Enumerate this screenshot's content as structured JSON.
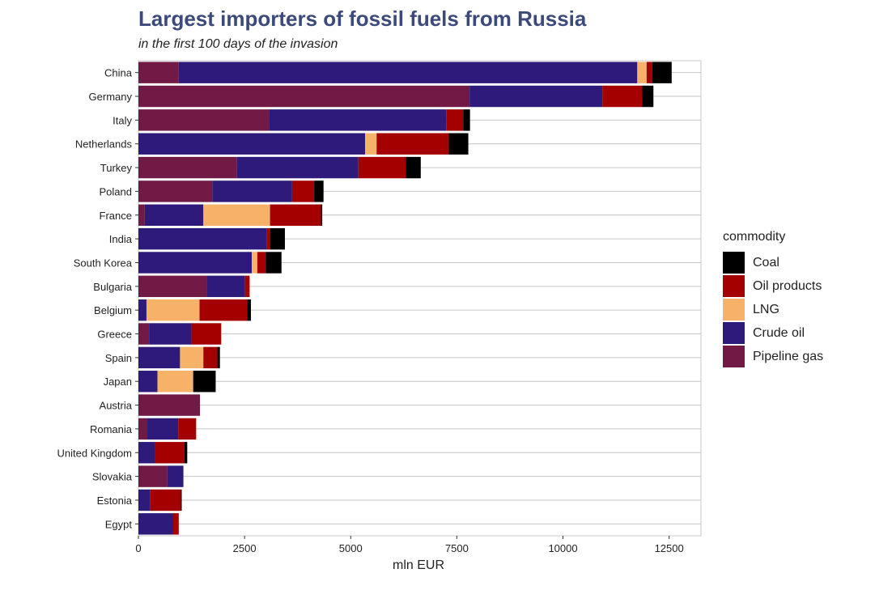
{
  "title": "Largest importers of fossil fuels from Russia",
  "subtitle": "in the first 100 days of the invasion",
  "legend": {
    "title": "commodity",
    "items": [
      {
        "label": "Coal",
        "color": "#000000"
      },
      {
        "label": "Oil products",
        "color": "#a50000"
      },
      {
        "label": "LNG",
        "color": "#f7b26a"
      },
      {
        "label": "Crude oil",
        "color": "#2e1a7a"
      },
      {
        "label": "Pipeline gas",
        "color": "#701a45"
      }
    ]
  },
  "chart_data": {
    "type": "bar",
    "orientation": "horizontal",
    "stacked": true,
    "xlabel": "mln EUR",
    "ylabel": "",
    "xlim": [
      0,
      13250
    ],
    "xticks": [
      0,
      2500,
      5000,
      7500,
      10000,
      12500
    ],
    "xtick_labels": [
      "0",
      "2500",
      "5000",
      "7500",
      "10000",
      "12500"
    ],
    "grid": "horizontal",
    "legend_position": "right",
    "categories": [
      "China",
      "Germany",
      "Italy",
      "Netherlands",
      "Turkey",
      "Poland",
      "France",
      "India",
      "South Korea",
      "Bulgaria",
      "Belgium",
      "Greece",
      "Spain",
      "Japan",
      "Austria",
      "Romania",
      "United Kingdom",
      "Slovakia",
      "Estonia",
      "Egypt"
    ],
    "series": [
      {
        "name": "Pipeline gas",
        "color": "#701a45",
        "values": [
          950,
          7800,
          3080,
          0,
          2320,
          1740,
          150,
          0,
          0,
          1620,
          0,
          250,
          0,
          0,
          1450,
          210,
          0,
          680,
          0,
          0
        ]
      },
      {
        "name": "Crude oil",
        "color": "#2e1a7a",
        "values": [
          10800,
          3130,
          4170,
          5340,
          2860,
          1880,
          1380,
          3020,
          2670,
          890,
          190,
          1000,
          980,
          450,
          0,
          730,
          390,
          380,
          280,
          820
        ]
      },
      {
        "name": "LNG",
        "color": "#f7b26a",
        "values": [
          220,
          0,
          0,
          270,
          0,
          0,
          1570,
          0,
          130,
          0,
          1250,
          0,
          550,
          840,
          0,
          0,
          0,
          0,
          0,
          0
        ]
      },
      {
        "name": "Oil products",
        "color": "#a50000",
        "values": [
          130,
          930,
          400,
          1700,
          1120,
          520,
          1200,
          80,
          200,
          110,
          1120,
          700,
          330,
          0,
          0,
          420,
          690,
          0,
          720,
          130
        ]
      },
      {
        "name": "Coal",
        "color": "#000000",
        "values": [
          460,
          270,
          160,
          460,
          350,
          220,
          30,
          350,
          370,
          0,
          90,
          0,
          60,
          530,
          0,
          0,
          70,
          0,
          20,
          0
        ]
      }
    ]
  }
}
